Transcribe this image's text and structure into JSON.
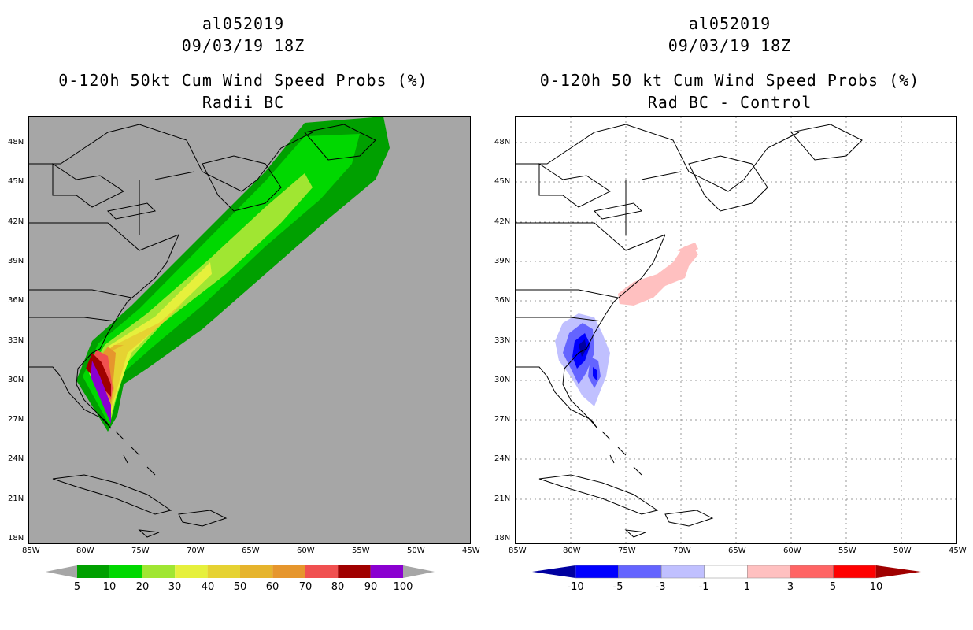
{
  "left_panel": {
    "storm_id": "al052019",
    "datetime": "09/03/19 18Z",
    "title": "0-120h 50kt Cum Wind Speed Probs (%)",
    "subtitle": "Radii BC",
    "background_color": "#a6a6a6",
    "colorbar": {
      "labels": [
        "5",
        "10",
        "20",
        "30",
        "40",
        "50",
        "60",
        "70",
        "80",
        "90",
        "100"
      ],
      "colors": [
        "#00a000",
        "#00d800",
        "#a0e632",
        "#e6f03c",
        "#e6d232",
        "#e6b42d",
        "#e6962d",
        "#f05050",
        "#a00000",
        "#8a00d0"
      ]
    }
  },
  "right_panel": {
    "storm_id": "al052019",
    "datetime": "09/03/19 18Z",
    "title": "0-120h 50 kt Cum Wind Speed Probs (%)",
    "subtitle": "Rad BC - Control",
    "background_color": "#ffffff",
    "colorbar": {
      "labels": [
        "-10",
        "-5",
        "-3",
        "-1",
        "1",
        "3",
        "5",
        "10"
      ],
      "colors": [
        "#0000a0",
        "#0000ff",
        "#6464ff",
        "#c0c0ff",
        "#ffffff",
        "#ffc0c0",
        "#ff6464",
        "#ff0000",
        "#a00000"
      ]
    }
  },
  "axes": {
    "lat_labels": [
      "48N",
      "45N",
      "42N",
      "39N",
      "36N",
      "33N",
      "30N",
      "27N",
      "24N",
      "21N",
      "18N"
    ],
    "lon_labels": [
      "85W",
      "80W",
      "75W",
      "70W",
      "65W",
      "60W",
      "55W",
      "50W",
      "45W"
    ]
  }
}
